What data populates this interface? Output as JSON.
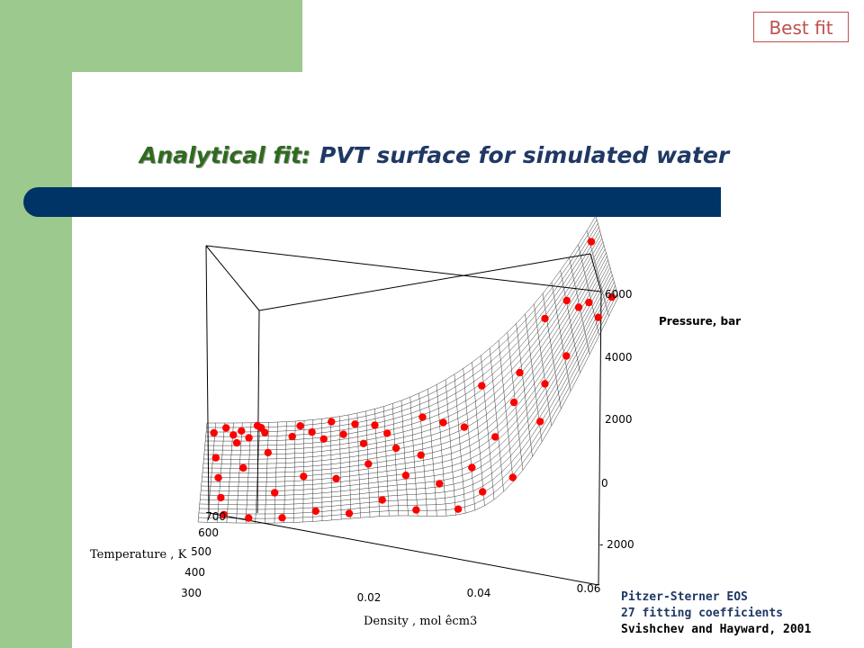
{
  "badge": "Best fit",
  "title": {
    "lead": "Analytical fit:",
    "rest": "PVT surface for simulated water"
  },
  "credits": [
    "Pitzer-Sterner EOS",
    "27 fitting coefficients",
    "Svishchev and Hayward, 2001"
  ],
  "colors": {
    "accent_green": "#9cc98e",
    "bar_blue": "#003366",
    "points": "#ff0000",
    "badge_red": "#c0504d"
  },
  "chart_data": {
    "type": "surface-3d",
    "zlabel": "Pressure, bar",
    "ylabel": "Temperature    , K",
    "xlabel": "Density  , mol êcm3",
    "xticks": [
      "0.02",
      "0.04",
      "0.06"
    ],
    "yticks": [
      "300",
      "400",
      "500",
      "600",
      "700"
    ],
    "zticks": [
      "6000",
      "4000",
      "2000",
      "0",
      "- 2000"
    ],
    "xlim": [
      0,
      0.06
    ],
    "ylim": [
      300,
      700
    ],
    "zlim": [
      -2000,
      6000
    ],
    "surface": "analytical Pitzer-Sterner EOS fit (mesh)",
    "points": "simulation data shown as red dots"
  }
}
